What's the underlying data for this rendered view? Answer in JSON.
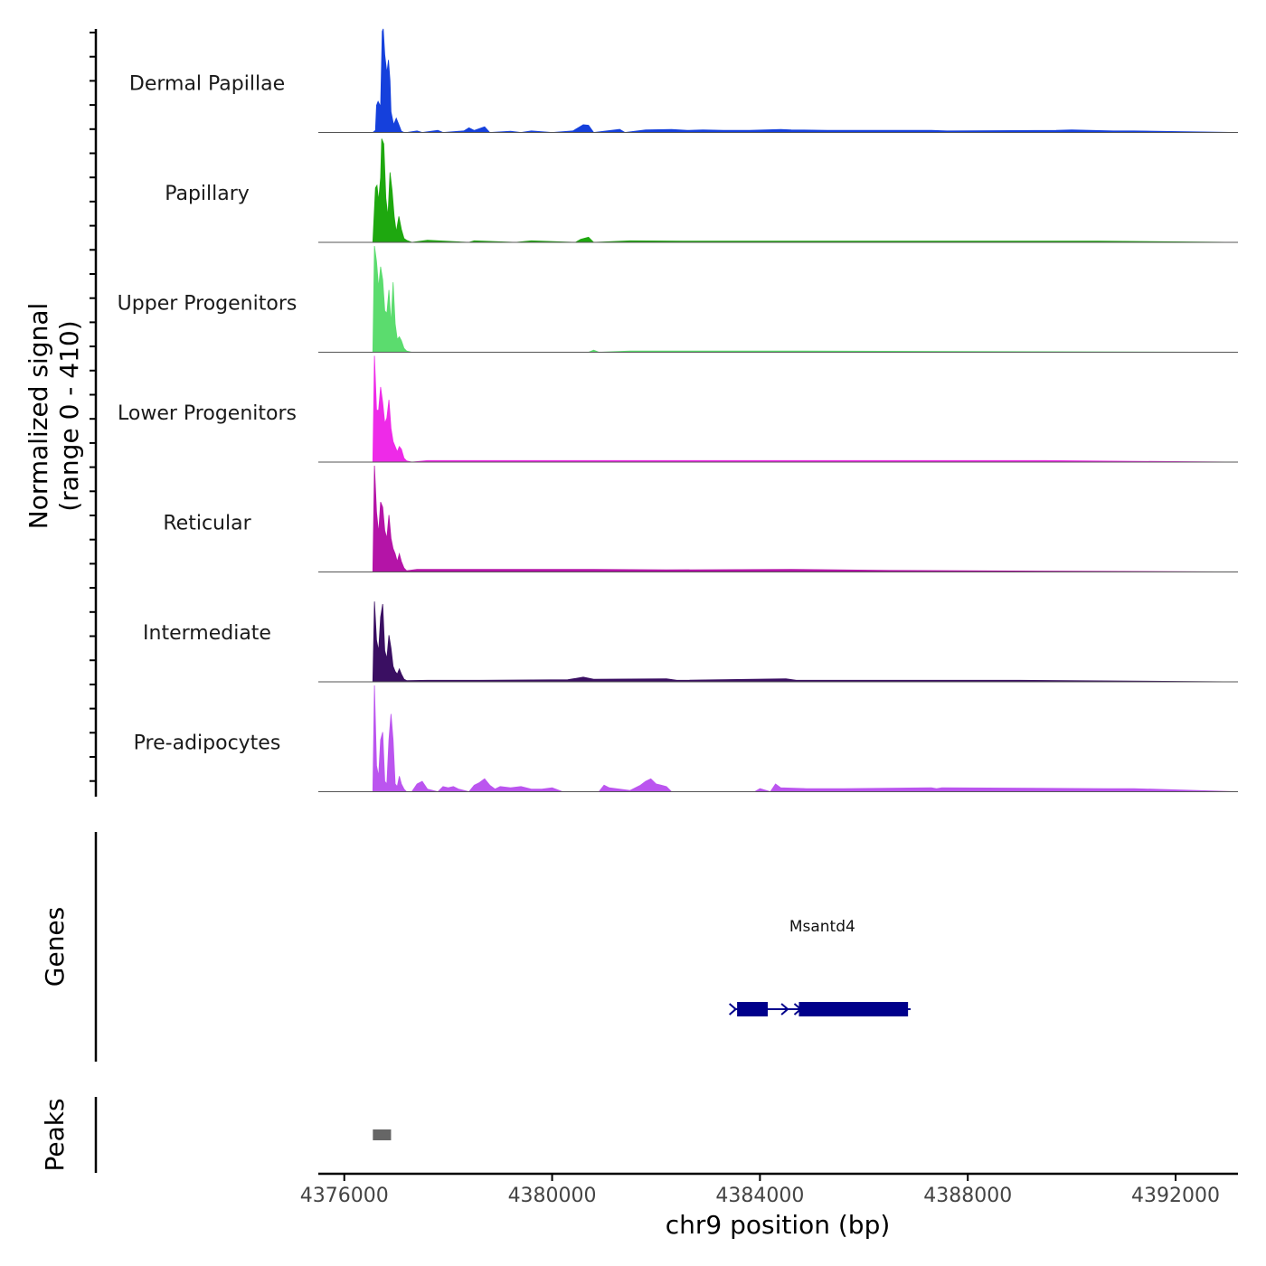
{
  "chart_data": {
    "type": "area",
    "title": "",
    "ylabel_line1": "Normalized signal",
    "ylabel_line2": "(range 0 - 410)",
    "xlabel": "chr9 position (bp)",
    "chromosome": "chr9",
    "xlim": [
      4375500,
      4393200
    ],
    "ylim": [
      0,
      410
    ],
    "x_ticks": [
      4376000,
      4380000,
      4384000,
      4388000,
      4392000
    ],
    "x_tick_labels": [
      "4376000",
      "4380000",
      "4384000",
      "4388000",
      "4392000"
    ],
    "series": [
      {
        "name": "Dermal Papillae",
        "color": "#1540dc",
        "x": [
          4376550,
          4376600,
          4376620,
          4376650,
          4376700,
          4376730,
          4376750,
          4376780,
          4376820,
          4376850,
          4376880,
          4376900,
          4376950,
          4377000,
          4377050,
          4377100,
          4377150,
          4377200,
          4377400,
          4377500,
          4377800,
          4377900,
          4378300,
          4378400,
          4378500,
          4378700,
          4378800,
          4379200,
          4379400,
          4379600,
          4380000,
          4380400,
          4380500,
          4380600,
          4380700,
          4380800,
          4381300,
          4381400,
          4381800,
          4382300,
          4382600,
          4382900,
          4383300,
          4383800,
          4384400,
          4384600,
          4385300,
          4386200,
          4387300,
          4387600,
          4389700,
          4390000,
          4390800,
          4391200,
          4393200
        ],
        "values": [
          0,
          8,
          105,
          120,
          100,
          390,
          400,
          300,
          230,
          280,
          200,
          80,
          30,
          55,
          30,
          5,
          0,
          0,
          6,
          0,
          8,
          0,
          6,
          18,
          8,
          22,
          0,
          5,
          0,
          6,
          0,
          6,
          18,
          30,
          28,
          0,
          12,
          0,
          10,
          12,
          8,
          10,
          8,
          8,
          12,
          10,
          8,
          8,
          8,
          6,
          8,
          10,
          6,
          6,
          0
        ]
      },
      {
        "name": "Papillary",
        "color": "#1ea80f",
        "x": [
          4376550,
          4376600,
          4376630,
          4376660,
          4376700,
          4376720,
          4376760,
          4376800,
          4376840,
          4376880,
          4376920,
          4376960,
          4377000,
          4377050,
          4377100,
          4377150,
          4377200,
          4377300,
          4377600,
          4378400,
          4378500,
          4379300,
          4379600,
          4380450,
          4380550,
          4380700,
          4380800,
          4381500,
          4382500,
          4383500,
          4384800,
          4386000,
          4387200,
          4389000,
          4390500,
          4393200
        ],
        "values": [
          0,
          210,
          220,
          160,
          250,
          400,
          380,
          170,
          100,
          270,
          200,
          100,
          40,
          100,
          50,
          15,
          8,
          0,
          8,
          0,
          6,
          0,
          6,
          0,
          12,
          20,
          0,
          6,
          5,
          5,
          5,
          5,
          5,
          5,
          5,
          0
        ]
      },
      {
        "name": "Upper Progenitors",
        "color": "#5bdc6e",
        "x": [
          4376550,
          4376580,
          4376620,
          4376660,
          4376700,
          4376740,
          4376780,
          4376820,
          4376860,
          4376900,
          4376940,
          4376980,
          4377020,
          4377060,
          4377100,
          4377150,
          4377200,
          4377300,
          4380700,
          4380800,
          4380900,
          4381500,
          4382400,
          4384500,
          4393200
        ],
        "values": [
          0,
          410,
          350,
          250,
          330,
          280,
          160,
          150,
          240,
          110,
          270,
          110,
          50,
          60,
          45,
          15,
          5,
          0,
          0,
          8,
          0,
          5,
          5,
          5,
          0
        ]
      },
      {
        "name": "Lower Progenitors",
        "color": "#ee2ae8",
        "x": [
          4376550,
          4376580,
          4376620,
          4376660,
          4376700,
          4376740,
          4376780,
          4376820,
          4376860,
          4376900,
          4376940,
          4376980,
          4377020,
          4377060,
          4377100,
          4377150,
          4377200,
          4377300,
          4377600,
          4378800,
          4380600,
          4382300,
          4384000,
          4386500,
          4389500,
          4393200
        ],
        "values": [
          0,
          410,
          200,
          200,
          290,
          230,
          150,
          170,
          240,
          130,
          80,
          60,
          40,
          60,
          50,
          15,
          5,
          0,
          6,
          6,
          6,
          6,
          6,
          6,
          6,
          0
        ]
      },
      {
        "name": "Reticular",
        "color": "#b414a7",
        "x": [
          4376550,
          4376580,
          4376620,
          4376660,
          4376700,
          4376740,
          4376780,
          4376820,
          4376860,
          4376900,
          4376940,
          4376980,
          4377020,
          4377060,
          4377100,
          4377150,
          4377200,
          4377400,
          4377800,
          4378100,
          4379300,
          4379950,
          4380800,
          4382200,
          4384600,
          4386500,
          4393200
        ],
        "values": [
          0,
          410,
          230,
          150,
          270,
          250,
          160,
          130,
          220,
          130,
          90,
          70,
          40,
          70,
          40,
          15,
          5,
          10,
          10,
          10,
          10,
          10,
          10,
          8,
          10,
          6,
          0
        ]
      },
      {
        "name": "Intermediate",
        "color": "#3a0f62",
        "x": [
          4376550,
          4376580,
          4376620,
          4376660,
          4376700,
          4376740,
          4376780,
          4376820,
          4376860,
          4376900,
          4376940,
          4376980,
          4377020,
          4377060,
          4377100,
          4377150,
          4377200,
          4377600,
          4378600,
          4380300,
          4380600,
          4380800,
          4382200,
          4382400,
          4384500,
          4384700,
          4386800,
          4389000,
          4393200
        ],
        "values": [
          0,
          310,
          160,
          120,
          250,
          300,
          120,
          90,
          180,
          130,
          60,
          40,
          30,
          50,
          30,
          10,
          5,
          6,
          6,
          8,
          18,
          10,
          12,
          6,
          12,
          6,
          6,
          6,
          0
        ]
      },
      {
        "name": "Pre-adipocytes",
        "color": "#bb55ef",
        "x": [
          4376550,
          4376580,
          4376620,
          4376660,
          4376700,
          4376740,
          4376780,
          4376820,
          4376860,
          4376900,
          4376940,
          4376980,
          4377020,
          4377060,
          4377100,
          4377150,
          4377200,
          4377300,
          4377400,
          4377500,
          4377600,
          4377800,
          4377900,
          4378000,
          4378100,
          4378200,
          4378400,
          4378500,
          4378600,
          4378700,
          4378800,
          4378900,
          4379000,
          4379200,
          4379400,
          4379600,
          4379800,
          4380000,
          4380200,
          4380900,
          4381000,
          4381100,
          4381500,
          4381700,
          4381800,
          4381900,
          4382000,
          4382100,
          4382200,
          4382300,
          4383900,
          4384000,
          4384200,
          4384300,
          4384400,
          4384900,
          4385400,
          4385600,
          4387300,
          4387400,
          4387500,
          4390700,
          4391200,
          4393200
        ],
        "values": [
          0,
          410,
          100,
          60,
          200,
          230,
          40,
          30,
          200,
          300,
          200,
          30,
          20,
          60,
          30,
          10,
          0,
          0,
          30,
          40,
          10,
          0,
          20,
          15,
          20,
          10,
          0,
          25,
          35,
          50,
          25,
          10,
          20,
          15,
          20,
          10,
          10,
          15,
          0,
          0,
          25,
          15,
          5,
          25,
          40,
          50,
          30,
          25,
          20,
          0,
          0,
          12,
          0,
          30,
          15,
          12,
          12,
          12,
          15,
          12,
          15,
          12,
          12,
          0
        ]
      }
    ],
    "genes": [
      {
        "name": "Msantd4",
        "start": 4383500,
        "end": 4386900,
        "strand": "+",
        "exons": [
          [
            4383560,
            4384150
          ],
          [
            4384750,
            4386850
          ]
        ]
      }
    ],
    "peaks_label": "Peaks",
    "genes_label": "Genes",
    "peaks": [
      [
        4376550,
        4376900
      ]
    ]
  }
}
